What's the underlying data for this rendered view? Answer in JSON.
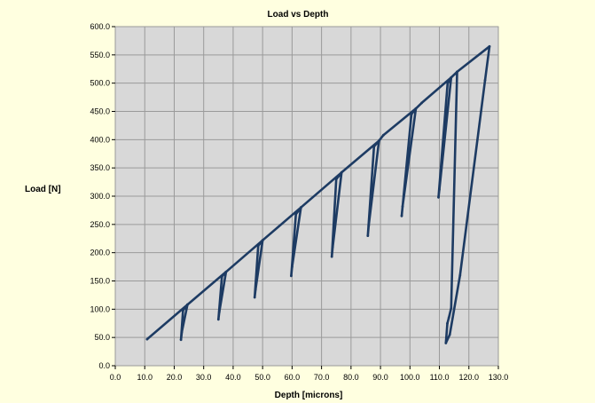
{
  "colors": {
    "background": "#ffffe0",
    "plot_area": "#d8d8d8",
    "grid": "#9a9a9a",
    "series": "#1d3b63",
    "frame": "#a9a9a9"
  },
  "chart_data": {
    "type": "line",
    "title": "Load vs Depth",
    "xlabel": "Depth [microns]",
    "ylabel": "Load [N]",
    "xlim": [
      0,
      130
    ],
    "ylim": [
      0,
      600
    ],
    "x_ticks": [
      "0.0",
      "10.0",
      "20.0",
      "30.0",
      "40.0",
      "50.0",
      "60.0",
      "70.0",
      "80.0",
      "90.0",
      "100.0",
      "110.0",
      "120.0",
      "130.0"
    ],
    "y_ticks": [
      "0.0",
      "50.0",
      "100.0",
      "150.0",
      "200.0",
      "250.0",
      "300.0",
      "350.0",
      "400.0",
      "450.0",
      "500.0",
      "550.0",
      "600.0"
    ],
    "grid": true,
    "legend": "none",
    "series": [
      {
        "values_xy": [
          [
            10.8,
            47
          ],
          [
            24.5,
            108
          ],
          [
            23.0,
            98
          ],
          [
            22.3,
            46
          ],
          [
            22.6,
            60
          ],
          [
            24.5,
            108
          ],
          [
            37.6,
            166
          ],
          [
            36.2,
            158
          ],
          [
            35.0,
            82
          ],
          [
            35.3,
            95
          ],
          [
            37.6,
            166
          ],
          [
            50.0,
            222
          ],
          [
            48.5,
            212
          ],
          [
            47.3,
            121
          ],
          [
            47.6,
            135
          ],
          [
            50.0,
            222
          ],
          [
            63.0,
            280
          ],
          [
            61.3,
            268
          ],
          [
            59.7,
            159
          ],
          [
            60.0,
            175
          ],
          [
            63.0,
            280
          ],
          [
            76.8,
            342
          ],
          [
            75.0,
            330
          ],
          [
            73.5,
            193
          ],
          [
            73.8,
            210
          ],
          [
            76.8,
            342
          ],
          [
            89.5,
            398
          ],
          [
            87.8,
            388
          ],
          [
            85.7,
            230
          ],
          [
            86.0,
            248
          ],
          [
            89.5,
            398
          ],
          [
            91.0,
            408
          ],
          [
            102.0,
            455
          ],
          [
            100.5,
            445
          ],
          [
            97.2,
            265
          ],
          [
            97.5,
            282
          ],
          [
            102.0,
            455
          ],
          [
            104.0,
            465
          ],
          [
            114.0,
            510
          ],
          [
            112.8,
            500
          ],
          [
            109.7,
            298
          ],
          [
            110.0,
            312
          ],
          [
            114.0,
            510
          ],
          [
            116.0,
            520
          ],
          [
            127.0,
            565
          ],
          [
            125.5,
            505
          ],
          [
            117.0,
            160
          ],
          [
            113.5,
            55
          ],
          [
            112.2,
            40
          ],
          [
            112.7,
            75
          ],
          [
            113.2,
            85
          ],
          [
            114.0,
            102
          ],
          [
            116.0,
            520
          ]
        ]
      }
    ]
  }
}
